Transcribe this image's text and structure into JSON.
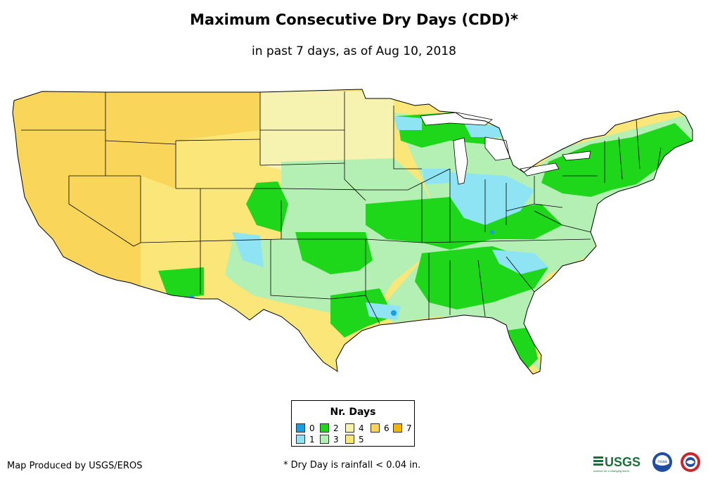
{
  "title": "Maximum Consecutive Dry Days (CDD)*",
  "subtitle": "in past 7 days, as of Aug 10, 2018",
  "legend": {
    "title": "Nr. Days",
    "items": [
      {
        "label": "0",
        "color": "#1a9ee0"
      },
      {
        "label": "1",
        "color": "#8ee4f2"
      },
      {
        "label": "2",
        "color": "#1ed61a"
      },
      {
        "label": "3",
        "color": "#b4f0b4"
      },
      {
        "label": "4",
        "color": "#f6f3b0"
      },
      {
        "label": "5",
        "color": "#fbe67a"
      },
      {
        "label": "6",
        "color": "#f9d65a"
      },
      {
        "label": "7",
        "color": "#f4b400"
      }
    ]
  },
  "footer": {
    "credit": "Map Produced by USGS/EROS",
    "note": "* Dry Day is rainfall < 0.04 in."
  },
  "logos": {
    "usgs": "USGS",
    "usgs_tagline": "science for a changing world",
    "noaa": "noaa"
  },
  "colors": {
    "border": "#000000",
    "water": "#ffffff"
  }
}
